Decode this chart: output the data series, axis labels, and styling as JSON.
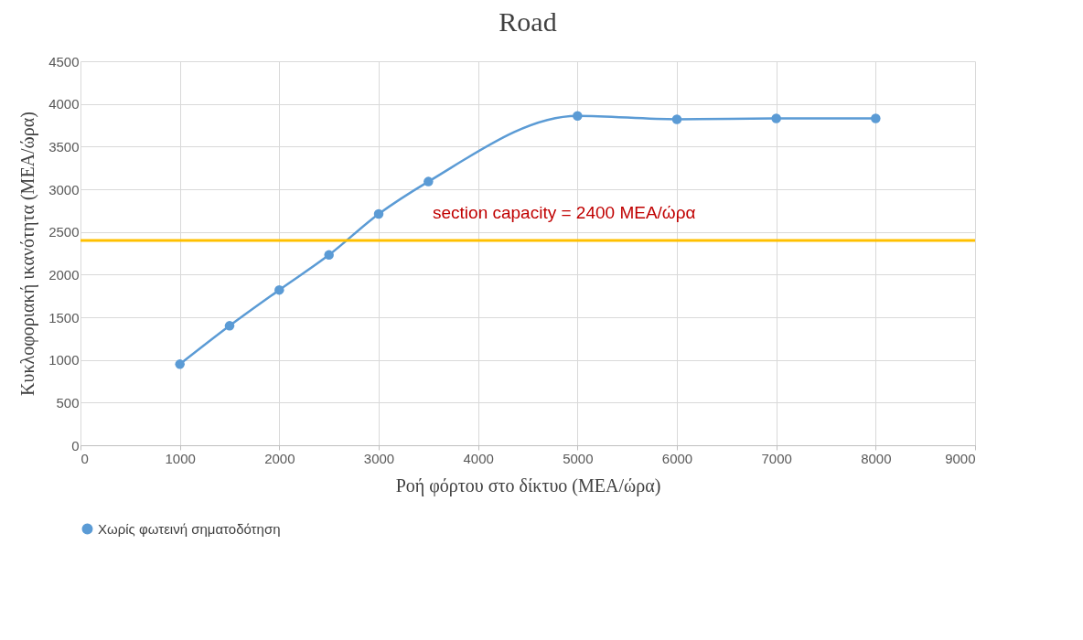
{
  "chart_data": {
    "type": "line",
    "title": "Road",
    "xlabel": "Ροή φόρτου στο δίκτυο (ΜΕΑ/ώρα)",
    "ylabel": "Κυκλοφοριακή ικανότητα (ΜΕΑ/ώρα)",
    "x": [
      1000,
      1500,
      2000,
      2500,
      3000,
      3500,
      5000,
      6000,
      7000,
      8000
    ],
    "series": [
      {
        "name": "Χωρίς φωτεινή σηματοδότηση",
        "color": "#5b9bd5",
        "values": [
          950,
          1400,
          1820,
          2230,
          2710,
          3090,
          3860,
          3820,
          3830,
          3830
        ]
      }
    ],
    "ref_lines": [
      {
        "axis": "y",
        "value": 2400,
        "label": "section capacity = 2400 ΜΕΑ/ώρα",
        "color": "#ffc000"
      }
    ],
    "xlim": [
      0,
      9000
    ],
    "xticks": [
      0,
      1000,
      2000,
      3000,
      4000,
      5000,
      6000,
      7000,
      8000,
      9000
    ],
    "ylim": [
      0,
      4500
    ],
    "yticks": [
      0,
      500,
      1000,
      1500,
      2000,
      2500,
      3000,
      3500,
      4000,
      4500
    ],
    "grid": true,
    "legend": "bottom",
    "marker": "circle",
    "line_style": "solid"
  }
}
